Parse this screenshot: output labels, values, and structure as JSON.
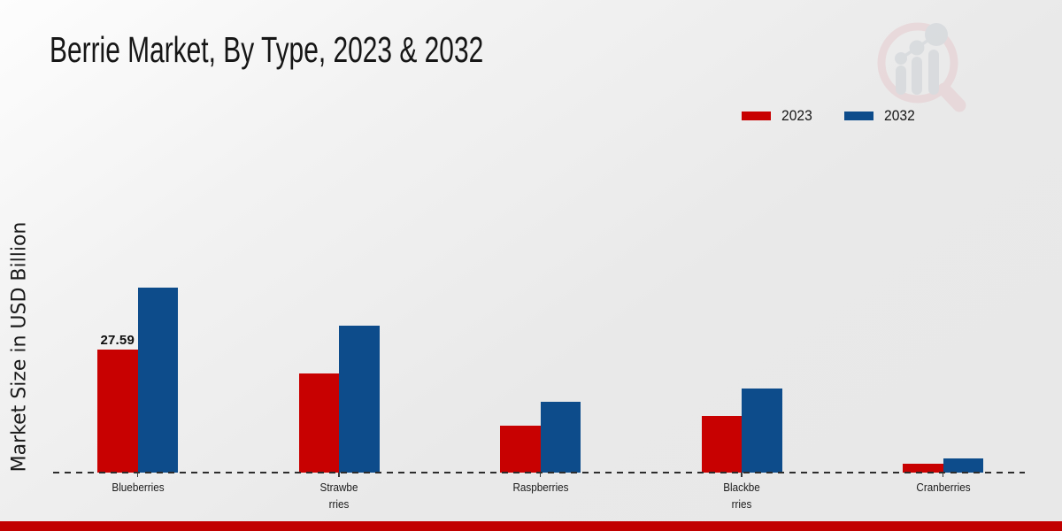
{
  "title": "Berrie Market, By Type, 2023 & 2032",
  "ylabel": "Market Size in USD Billion",
  "colors": {
    "series_2023": "#c80101",
    "series_2032": "#0d4c8b",
    "bottom_strip": "#c10000",
    "axis_dash": "#2d2d2d",
    "text": "#161616"
  },
  "legend": {
    "position": "top-right",
    "items": [
      {
        "label": "2023",
        "color": "#c80101"
      },
      {
        "label": "2032",
        "color": "#0d4c8b"
      }
    ]
  },
  "watermark_icon": "magnifier-bar-chart-logo",
  "chart_data": {
    "type": "bar",
    "title": "Berrie Market, By Type, 2023 & 2032",
    "xlabel": "",
    "ylabel": "Market Size in USD Billion",
    "grid": false,
    "legend_position": "top-right",
    "baseline_value": 0,
    "ylim": [
      0,
      45
    ],
    "categories": [
      "Blueberries",
      "Strawberries",
      "Raspberries",
      "Blackberries",
      "Cranberries"
    ],
    "categories_display": [
      [
        "Blueberries"
      ],
      [
        "Strawbe",
        "rries"
      ],
      [
        "Raspberries"
      ],
      [
        "Blackbe",
        "rries"
      ],
      [
        "Cranberries"
      ]
    ],
    "series": [
      {
        "name": "2023",
        "color": "#c80101",
        "values": [
          27.59,
          22.2,
          10.5,
          12.7,
          2.0
        ]
      },
      {
        "name": "2032",
        "color": "#0d4c8b",
        "values": [
          41.4,
          33.0,
          15.9,
          18.9,
          3.2
        ]
      }
    ],
    "value_labels": [
      {
        "series_index": 0,
        "category_index": 0,
        "text": "27.59"
      }
    ]
  }
}
